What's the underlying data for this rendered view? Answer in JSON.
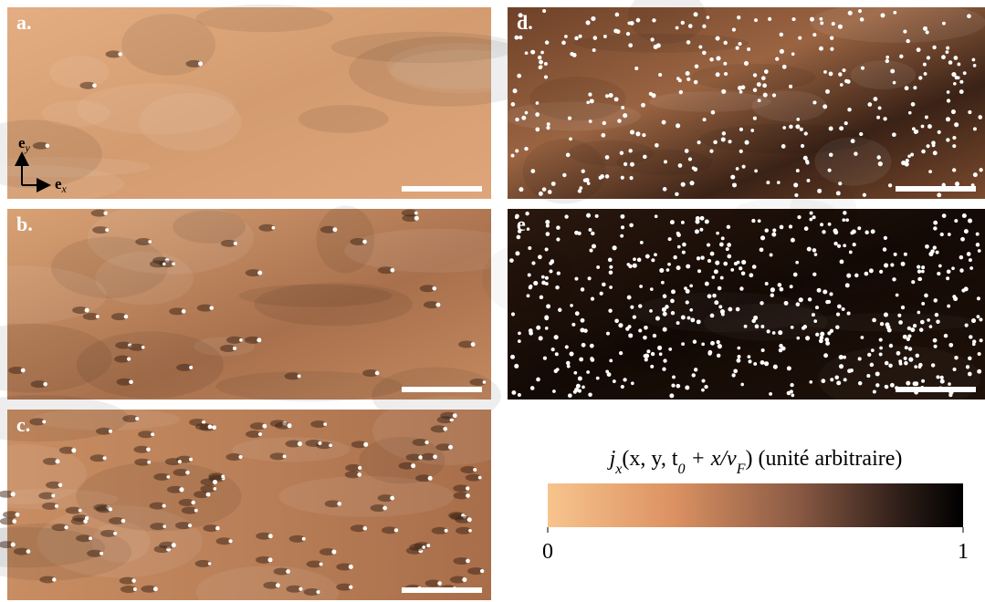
{
  "panels": [
    {
      "label": "a."
    },
    {
      "label": "b."
    },
    {
      "label": "c."
    },
    {
      "label": "d."
    },
    {
      "label": "e."
    }
  ],
  "frame": {
    "y_symbol": "e",
    "y_sub": "y",
    "x_symbol": "e",
    "x_sub": "x"
  },
  "colorbar": {
    "title_parts": [
      {
        "text": "j"
      },
      {
        "text": "x",
        "sub": true
      },
      {
        "text": "(x, y, t"
      },
      {
        "text": "0",
        "sub": true
      },
      {
        "text": " + x/v"
      },
      {
        "text": "F",
        "sub": true
      },
      {
        "text": ") (unité arbitraire)"
      }
    ],
    "ticks": [
      0,
      1
    ]
  }
}
